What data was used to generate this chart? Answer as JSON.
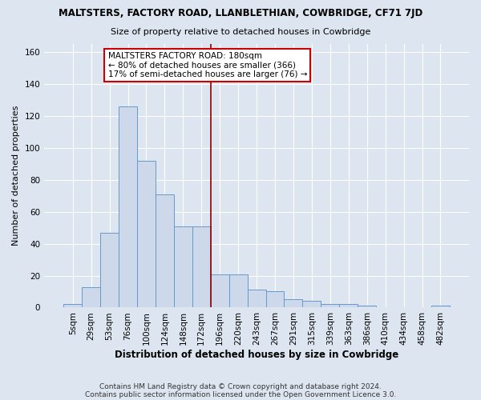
{
  "title": "MALTSTERS, FACTORY ROAD, LLANBLETHIAN, COWBRIDGE, CF71 7JD",
  "subtitle": "Size of property relative to detached houses in Cowbridge",
  "xlabel": "Distribution of detached houses by size in Cowbridge",
  "ylabel": "Number of detached properties",
  "bar_labels": [
    "5sqm",
    "29sqm",
    "53sqm",
    "76sqm",
    "100sqm",
    "124sqm",
    "148sqm",
    "172sqm",
    "196sqm",
    "220sqm",
    "243sqm",
    "267sqm",
    "291sqm",
    "315sqm",
    "339sqm",
    "363sqm",
    "386sqm",
    "410sqm",
    "434sqm",
    "458sqm",
    "482sqm"
  ],
  "bar_values": [
    2,
    13,
    47,
    126,
    92,
    71,
    51,
    51,
    21,
    21,
    11,
    10,
    5,
    4,
    2,
    2,
    1,
    0,
    0,
    0,
    1
  ],
  "bar_color": "#cdd9ea",
  "bar_edge_color": "#6699cc",
  "vline_color": "#8b0000",
  "annotation_title": "MALTSTERS FACTORY ROAD: 180sqm",
  "annotation_line1": "← 80% of detached houses are smaller (366)",
  "annotation_line2": "17% of semi-detached houses are larger (76) →",
  "annotation_box_color": "white",
  "annotation_box_edge": "#cc0000",
  "ylim": [
    0,
    165
  ],
  "yticks": [
    0,
    20,
    40,
    60,
    80,
    100,
    120,
    140,
    160
  ],
  "footer1": "Contains HM Land Registry data © Crown copyright and database right 2024.",
  "footer2": "Contains public sector information licensed under the Open Government Licence 3.0.",
  "background_color": "#dde6f0"
}
